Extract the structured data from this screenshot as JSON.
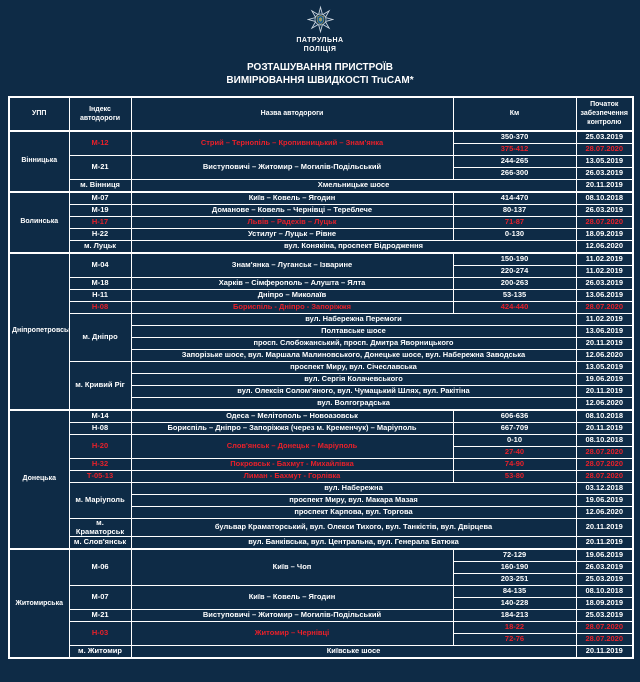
{
  "header": {
    "org_line1": "ПАТРУЛЬНА",
    "org_line2": "ПОЛІЦІЯ",
    "title_line1": "РОЗТАШУВАННЯ ПРИСТРОЇВ",
    "title_line2": "ВИМІРЮВАННЯ ШВИДКОСТІ TruCAM*"
  },
  "colors": {
    "background": "#0e2b46",
    "border": "#ffffff",
    "text": "#ffffff",
    "accent_red": "#e8202a"
  },
  "table": {
    "columns": [
      "УПП",
      "Індекс автодороги",
      "Назва автодороги",
      "Км",
      "Початок забезпечення контролю"
    ],
    "rows": [
      {
        "region_start": true,
        "cells": [
          {
            "t": "Вінницька",
            "rs": 5
          },
          {
            "t": "М-12",
            "rs": 2,
            "red": true
          },
          {
            "t": "Стрий – Тернопіль – Кропивницький – Знам'янка",
            "rs": 2,
            "red": true
          },
          {
            "t": "350-370"
          },
          {
            "t": "25.03.2019"
          }
        ]
      },
      {
        "cells": [
          {
            "t": "375-412",
            "red": true
          },
          {
            "t": "28.07.2020",
            "red": true
          }
        ]
      },
      {
        "cells": [
          {
            "t": "М-21",
            "rs": 2
          },
          {
            "t": "Виступовичі – Житомир – Могилів-Подільський",
            "rs": 2
          },
          {
            "t": "244-265"
          },
          {
            "t": "13.05.2019"
          }
        ]
      },
      {
        "cells": [
          {
            "t": "266-300"
          },
          {
            "t": "26.03.2019"
          }
        ]
      },
      {
        "cells": [
          {
            "t": "м. Вінниця"
          },
          {
            "t": "Хмельницьке шосе",
            "cs": 2
          },
          {
            "t": "20.11.2019"
          }
        ]
      },
      {
        "region_start": true,
        "cells": [
          {
            "t": "Волинська",
            "rs": 5
          },
          {
            "t": "М-07"
          },
          {
            "t": "Київ – Ковель – Ягодин"
          },
          {
            "t": "414-470"
          },
          {
            "t": "08.10.2018"
          }
        ]
      },
      {
        "cells": [
          {
            "t": "М-19"
          },
          {
            "t": "Доманове – Ковель – Чернівці – Тереблече"
          },
          {
            "t": "80-137"
          },
          {
            "t": "26.03.2019"
          }
        ]
      },
      {
        "cells": [
          {
            "t": "Н-17",
            "red": true
          },
          {
            "t": "Львів – Радехів – Луцьк",
            "red": true
          },
          {
            "t": "71-87",
            "red": true
          },
          {
            "t": "28.07.2020",
            "red": true
          }
        ]
      },
      {
        "cells": [
          {
            "t": "Н-22"
          },
          {
            "t": "Устилуг – Луцьк – Рівне"
          },
          {
            "t": "0-130"
          },
          {
            "t": "18.09.2019"
          }
        ]
      },
      {
        "cells": [
          {
            "t": "м. Луцьк"
          },
          {
            "t": "вул. Конякіна, проспект Відродження",
            "cs": 2
          },
          {
            "t": "12.06.2020"
          }
        ]
      },
      {
        "region_start": true,
        "cells": [
          {
            "t": "Дніпропетровська",
            "rs": 13
          },
          {
            "t": "М-04",
            "rs": 2
          },
          {
            "t": "Знам'янка – Луганськ – Ізварине",
            "rs": 2
          },
          {
            "t": "150-190"
          },
          {
            "t": "11.02.2019"
          }
        ]
      },
      {
        "cells": [
          {
            "t": "220-274"
          },
          {
            "t": "11.02.2019"
          }
        ]
      },
      {
        "cells": [
          {
            "t": "М-18"
          },
          {
            "t": "Харків – Сімферополь – Алушта – Ялта"
          },
          {
            "t": "200-263"
          },
          {
            "t": "26.03.2019"
          }
        ]
      },
      {
        "cells": [
          {
            "t": "Н-11"
          },
          {
            "t": "Дніпро – Миколаїв"
          },
          {
            "t": "53-135"
          },
          {
            "t": "13.06.2019"
          }
        ]
      },
      {
        "cells": [
          {
            "t": "Н-08",
            "red": true
          },
          {
            "t": "Бориспіль - Дніпро - Запоріжжя",
            "red": true
          },
          {
            "t": "424-440",
            "red": true
          },
          {
            "t": "28.07.2020",
            "red": true
          }
        ]
      },
      {
        "cells": [
          {
            "t": "м. Дніпро",
            "rs": 4
          },
          {
            "t": "вул. Набережна Перемоги",
            "cs": 2
          },
          {
            "t": "11.02.2019"
          }
        ]
      },
      {
        "cells": [
          {
            "t": "Полтавське шосе",
            "cs": 2
          },
          {
            "t": "13.06.2019"
          }
        ]
      },
      {
        "cells": [
          {
            "t": "просп. Слобожанський, просп. Дмитра Яворницького",
            "cs": 2
          },
          {
            "t": "20.11.2019"
          }
        ]
      },
      {
        "cells": [
          {
            "t": "Запорізьке шосе, вул. Маршала Малиновського,  Донецьке шосе, вул. Набережна Заводська",
            "cs": 2
          },
          {
            "t": "12.06.2020"
          }
        ]
      },
      {
        "cells": [
          {
            "t": "м. Кривий Ріг",
            "rs": 4
          },
          {
            "t": "проспект Миру, вул. Січеславська",
            "cs": 2
          },
          {
            "t": "13.05.2019"
          }
        ]
      },
      {
        "cells": [
          {
            "t": "вул. Сергія Колачевського",
            "cs": 2
          },
          {
            "t": "19.06.2019"
          }
        ]
      },
      {
        "cells": [
          {
            "t": "вул. Олексія Солом'яного, вул. Чумацький Шлях, вул. Ракітіна",
            "cs": 2
          },
          {
            "t": "20.11.2019"
          }
        ]
      },
      {
        "cells": [
          {
            "t": "вул. Волгоградська",
            "cs": 2
          },
          {
            "t": "12.06.2020"
          }
        ]
      },
      {
        "region_start": true,
        "cells": [
          {
            "t": "Донецька",
            "rs": 11
          },
          {
            "t": "М-14"
          },
          {
            "t": "Одеса – Мелітополь – Новоазовськ"
          },
          {
            "t": "606-636"
          },
          {
            "t": "08.10.2018"
          }
        ]
      },
      {
        "cells": [
          {
            "t": "Н-08"
          },
          {
            "t": "Бориспіль – Дніпро – Запоріжжя (через м. Кременчук) – Маріуполь"
          },
          {
            "t": "667-709"
          },
          {
            "t": "20.11.2019"
          }
        ]
      },
      {
        "cells": [
          {
            "t": "Н-20",
            "rs": 2,
            "red": true
          },
          {
            "t": "Слов'янськ – Донецьк – Маріуполь",
            "rs": 2,
            "red": true
          },
          {
            "t": "0-10"
          },
          {
            "t": "08.10.2018"
          }
        ]
      },
      {
        "cells": [
          {
            "t": "27-40",
            "red": true
          },
          {
            "t": "28.07.2020",
            "red": true
          }
        ]
      },
      {
        "cells": [
          {
            "t": "Н-32",
            "red": true
          },
          {
            "t": "Покровськ - Бахмут - Михайлівка",
            "red": true
          },
          {
            "t": "74-90",
            "red": true
          },
          {
            "t": "28.07.2020",
            "red": true
          }
        ]
      },
      {
        "cells": [
          {
            "t": "Т-05-13",
            "red": true
          },
          {
            "t": "Лиман - Бахмут - Горлівка",
            "red": true
          },
          {
            "t": "53-80",
            "red": true
          },
          {
            "t": "28.07.2020",
            "red": true
          }
        ]
      },
      {
        "cells": [
          {
            "t": "м. Маріуполь",
            "rs": 3
          },
          {
            "t": "вул. Набережна",
            "cs": 2
          },
          {
            "t": "03.12.2018"
          }
        ]
      },
      {
        "cells": [
          {
            "t": "проспект Миру, вул. Макара Мазая",
            "cs": 2
          },
          {
            "t": "19.06.2019"
          }
        ]
      },
      {
        "cells": [
          {
            "t": "проспект Карпова, вул. Торгова",
            "cs": 2
          },
          {
            "t": "12.06.2020"
          }
        ]
      },
      {
        "cells": [
          {
            "t": "м. Краматорськ"
          },
          {
            "t": "бульвар Краматорський, вул. Олекси Тихого, вул. Танкістів, вул. Двірцева",
            "cs": 2
          },
          {
            "t": "20.11.2019"
          }
        ]
      },
      {
        "cells": [
          {
            "t": "м. Слов'янськ"
          },
          {
            "t": "вул. Банківська, вул. Центральна, вул. Генерала Батюка",
            "cs": 2
          },
          {
            "t": "20.11.2019"
          }
        ]
      },
      {
        "region_start": true,
        "cells": [
          {
            "t": "Житомирська",
            "rs": 9
          },
          {
            "t": "М-06",
            "rs": 3
          },
          {
            "t": "Київ – Чоп",
            "rs": 3
          },
          {
            "t": "72-129"
          },
          {
            "t": "19.06.2019"
          }
        ]
      },
      {
        "cells": [
          {
            "t": "160-190"
          },
          {
            "t": "26.03.2019"
          }
        ]
      },
      {
        "cells": [
          {
            "t": "203-251"
          },
          {
            "t": "25.03.2019"
          }
        ]
      },
      {
        "cells": [
          {
            "t": "М-07",
            "rs": 2
          },
          {
            "t": "Київ – Ковель – Ягодин",
            "rs": 2
          },
          {
            "t": "84-135"
          },
          {
            "t": "08.10.2018"
          }
        ]
      },
      {
        "cells": [
          {
            "t": "140-228"
          },
          {
            "t": "18.09.2019"
          }
        ]
      },
      {
        "cells": [
          {
            "t": "М-21"
          },
          {
            "t": "Виступовичі – Житомир – Могилів-Подільський"
          },
          {
            "t": "184-213"
          },
          {
            "t": "25.03.2019"
          }
        ]
      },
      {
        "cells": [
          {
            "t": "Н-03",
            "rs": 2,
            "red": true
          },
          {
            "t": "Житомир – Чернівці",
            "rs": 2,
            "red": true
          },
          {
            "t": "18-22",
            "red": true
          },
          {
            "t": "28.07.2020",
            "red": true
          }
        ]
      },
      {
        "cells": [
          {
            "t": "72-76",
            "red": true
          },
          {
            "t": "28.07.2020",
            "red": true
          }
        ]
      },
      {
        "cells": [
          {
            "t": "м. Житомир"
          },
          {
            "t": "Київське шосе",
            "cs": 2
          },
          {
            "t": "20.11.2019"
          }
        ]
      }
    ]
  }
}
